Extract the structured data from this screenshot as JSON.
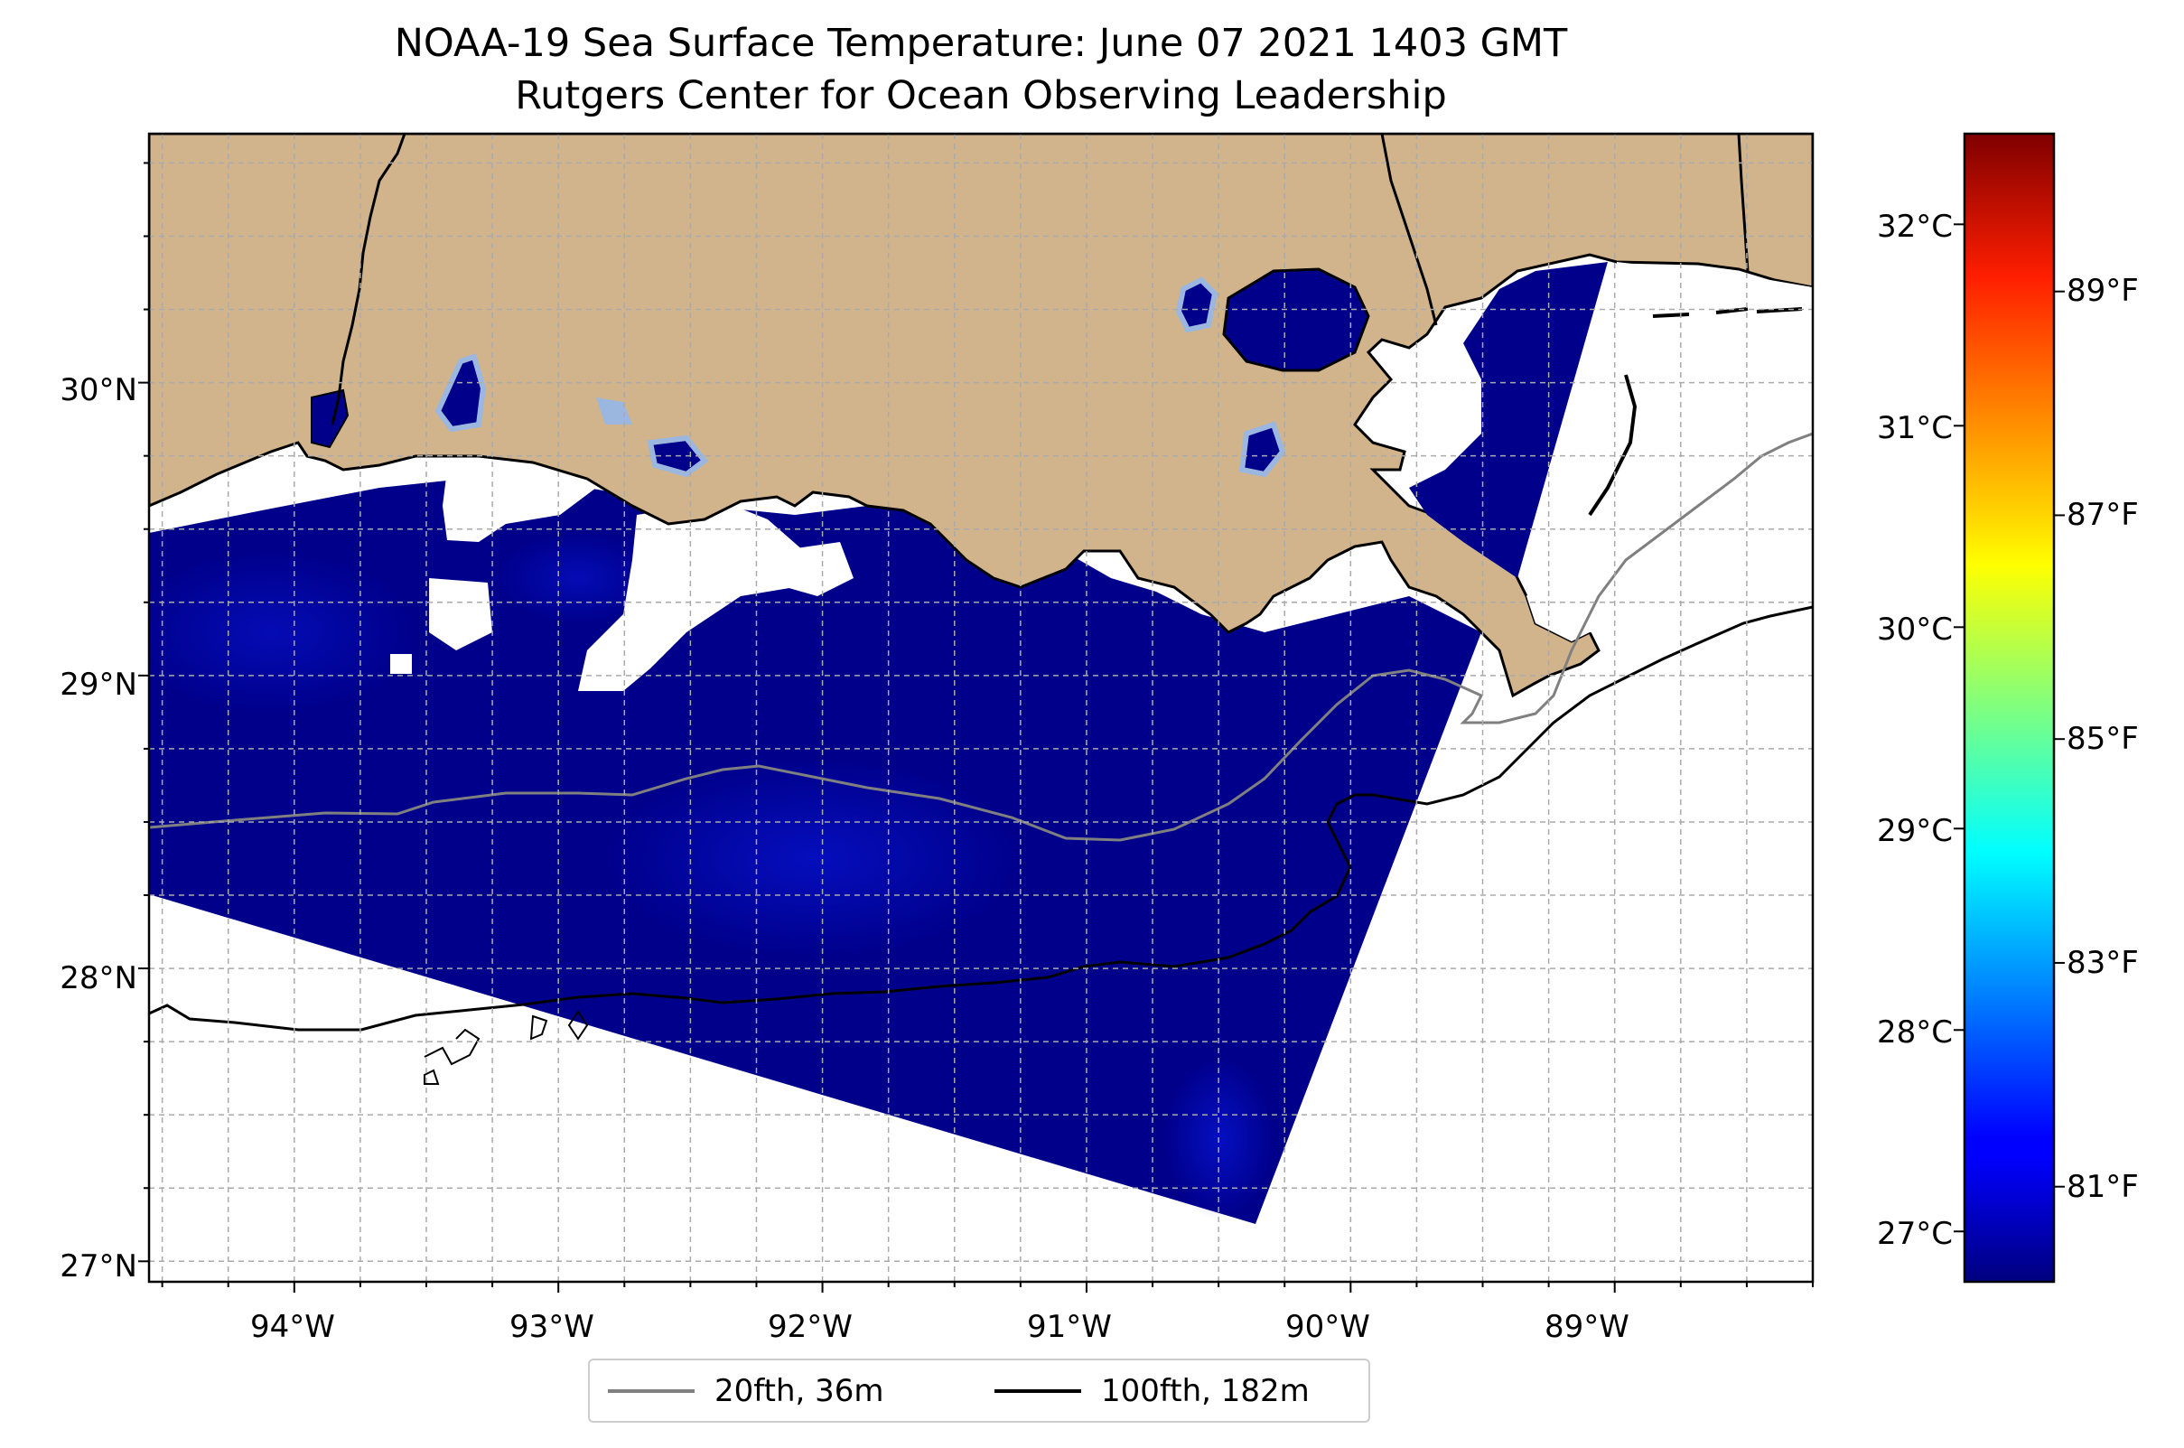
{
  "title": {
    "line1": "NOAA-19 Sea Surface Temperature: June 07 2021 1403 GMT",
    "line2": "Rutgers Center for Ocean Observing Leadership"
  },
  "map": {
    "lon_range": [
      -94.55,
      -88.25
    ],
    "lat_range": [
      26.93,
      30.85
    ],
    "lon_ticks": [
      "94°W",
      "93°W",
      "92°W",
      "91°W",
      "90°W",
      "89°W"
    ],
    "lat_ticks": [
      "27°N",
      "28°N",
      "29°N",
      "30°N"
    ],
    "gridlines": true,
    "colors": {
      "land": "#d2b48c",
      "sst_cold": "#00008b",
      "sst_mid": "#0a14e0",
      "isobath_20fth": "#808080",
      "isobath_100fth": "#000000"
    }
  },
  "colorbar": {
    "colormap": "jet",
    "celsius_range": [
      26.75,
      32.45
    ],
    "celsius_ticks": [
      "27°C",
      "28°C",
      "29°C",
      "30°C",
      "31°C",
      "32°C"
    ],
    "fahrenheit_ticks": [
      "81°F",
      "83°F",
      "85°F",
      "87°F",
      "89°F"
    ]
  },
  "legend": {
    "items": [
      {
        "label": "20fth, 36m",
        "color": "#808080"
      },
      {
        "label": "100fth, 182m",
        "color": "#000000"
      }
    ]
  }
}
